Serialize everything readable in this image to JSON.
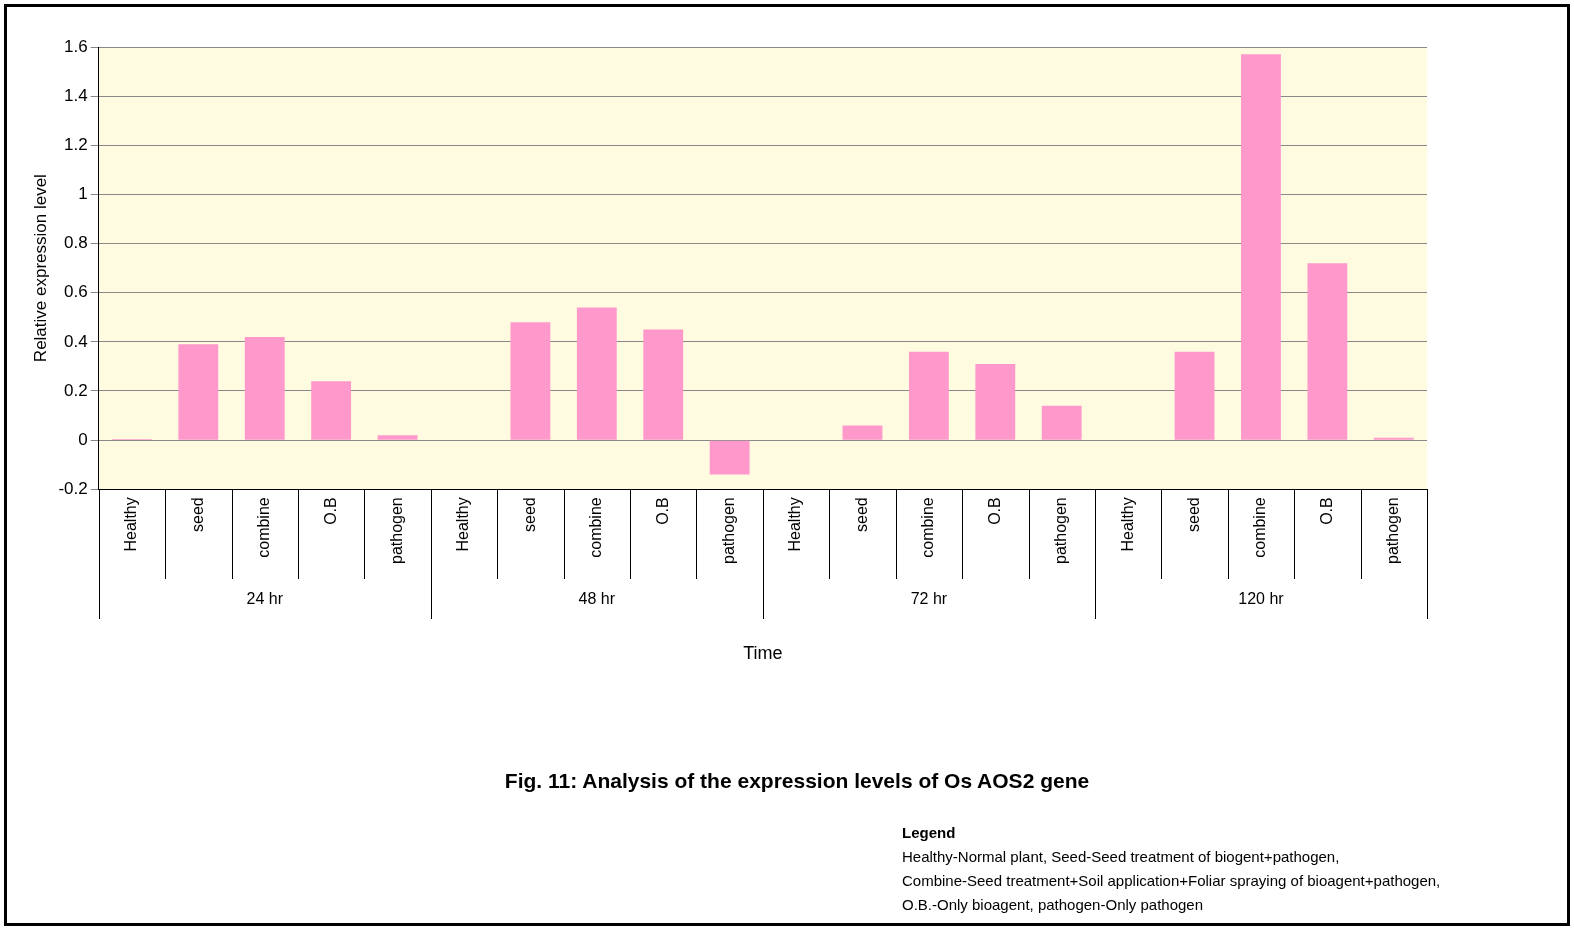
{
  "chart_data": {
    "type": "bar",
    "title": "Fig. 11: Analysis of the expression levels of Os AOS2 gene",
    "xlabel": "Time",
    "ylabel": "Relative expression level",
    "categories": [
      "Healthy",
      "seed",
      "combine",
      "O.B",
      "pathogen",
      "Healthy",
      "seed",
      "combine",
      "O.B",
      "pathogen",
      "Healthy",
      "seed",
      "combine",
      "O.B",
      "pathogen",
      "Healthy",
      "seed",
      "combine",
      "O.B",
      "pathogen"
    ],
    "values": [
      0.005,
      0.39,
      0.42,
      0.24,
      0.02,
      0.0,
      0.48,
      0.54,
      0.45,
      -0.14,
      0.0,
      0.06,
      0.36,
      0.31,
      0.14,
      0.0,
      0.36,
      1.57,
      0.72,
      0.01
    ],
    "color": "#ff99cc",
    "ylim": [
      -0.2,
      1.6
    ],
    "yticks": [
      -0.2,
      0,
      0.2,
      0.4,
      0.6,
      0.8,
      1,
      1.2,
      1.4,
      1.6
    ],
    "grid": "y",
    "annotations": [
      "24 hr",
      "48 hr",
      "72 hr",
      "120 hr",
      "Legend",
      "Healthy-Normal plant, Seed-Seed treatment of biogent+pathogen,",
      "Combine-Seed treatment+Soil application+Foliar spraying of bioagent+pathogen,",
      "O.B.-Only bioagent, pathogen-Only pathogen"
    ]
  }
}
